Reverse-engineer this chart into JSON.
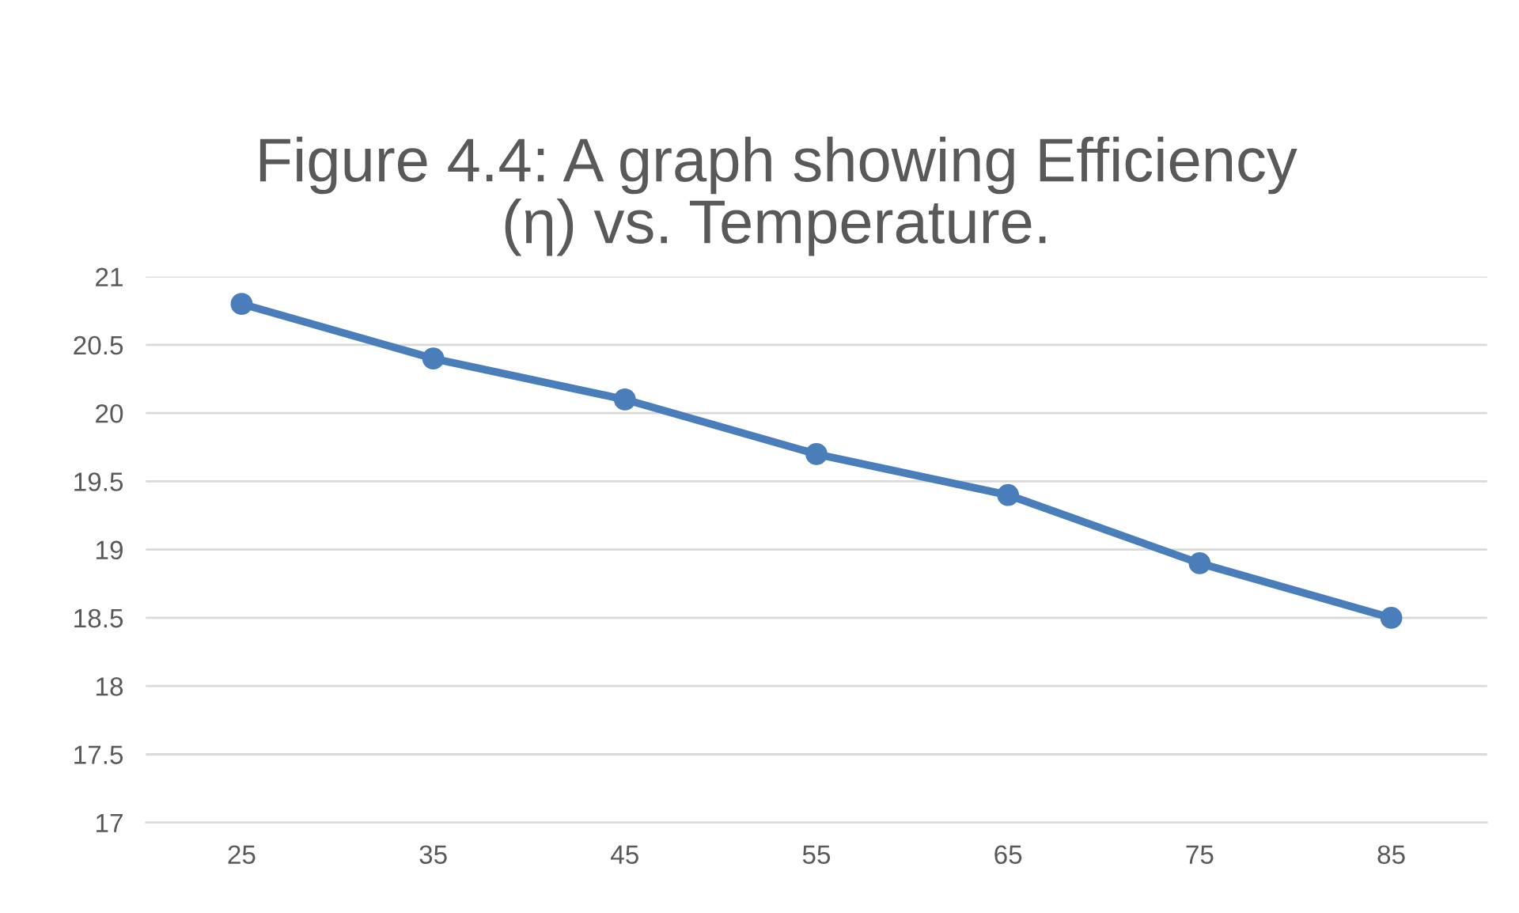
{
  "chart_data": {
    "type": "line",
    "title": "Figure 4.4: A graph showing Efficiency (η) vs. Temperature.",
    "categories": [
      "25",
      "35",
      "45",
      "55",
      "65",
      "75",
      "85"
    ],
    "series": [
      {
        "color": "#4a7ebb",
        "values": [
          20.8,
          20.4,
          20.1,
          19.7,
          19.4,
          18.9,
          18.5
        ]
      }
    ],
    "ylim": [
      17,
      21
    ],
    "yticks": [
      17,
      17.5,
      18,
      18.5,
      19,
      19.5,
      20,
      20.5,
      21
    ],
    "grid": "y",
    "marker": "circle",
    "line_style": "solid",
    "legend": false
  }
}
